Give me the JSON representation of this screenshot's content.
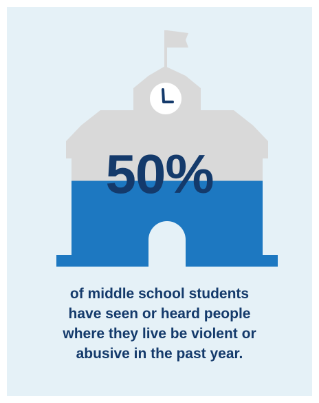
{
  "stat": {
    "value": "50%",
    "proportion": 0.5
  },
  "caption": {
    "lines": [
      "of middle school students",
      "have seen or heard people",
      "where they live be violent or",
      "abusive in the past year."
    ]
  },
  "icon": "school-building-icon",
  "colors": {
    "background": "#e5f1f7",
    "building_gray": "#d9d9d9",
    "building_blue": "#1d78c1",
    "text": "#143a6b"
  }
}
